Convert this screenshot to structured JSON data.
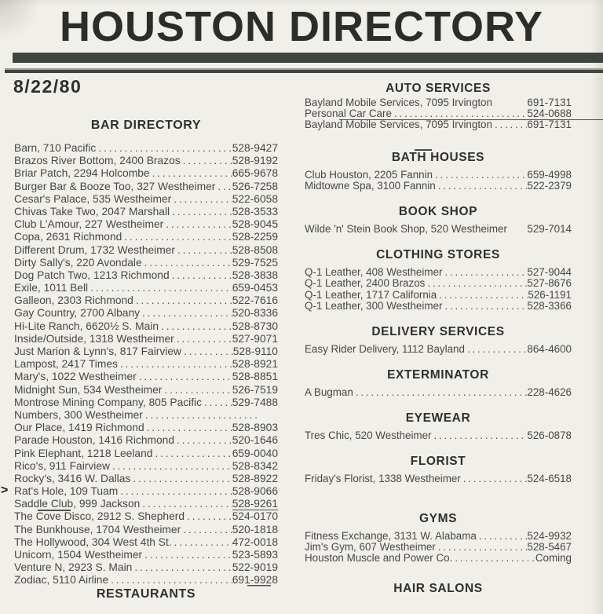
{
  "page": {
    "title": "HOUSTON DIRECTORY",
    "date": "8/22/80"
  },
  "colors": {
    "paper": "#f1efe9",
    "ink": "#474745",
    "heading_ink": "#2c2c2a",
    "header_bar": "#40453f"
  },
  "left_column": {
    "heading": "BAR DIRECTORY",
    "entries": [
      {
        "name": "Barn, 710 Pacific",
        "phone": "528-9427"
      },
      {
        "name": "Brazos River Bottom, 2400 Brazos",
        "phone": "528-9192"
      },
      {
        "name": "Briar Patch, 2294 Holcombe",
        "phone": "665-9678"
      },
      {
        "name": "Burger Bar & Booze Too, 327 Westheimer",
        "phone": "526-7258"
      },
      {
        "name": "Cesar's Palace, 535 Westheimer",
        "phone": "522-6058"
      },
      {
        "name": "Chivas Take Two, 2047 Marshall",
        "phone": "528-3533"
      },
      {
        "name": "Club L'Amour, 227 Westheimer",
        "phone": "528-9045"
      },
      {
        "name": "Copa, 2631 Richmond",
        "phone": "528-2259"
      },
      {
        "name": "Different Drum, 1732 Westheimer",
        "phone": "528-8508"
      },
      {
        "name": "Dirty Sally's, 220 Avondale",
        "phone": "529-7525"
      },
      {
        "name": "Dog Patch Two, 1213 Richmond",
        "phone": "528-3838"
      },
      {
        "name": "Exile, 1011 Bell",
        "phone": "659-0453"
      },
      {
        "name": "Galleon, 2303 Richmond",
        "phone": "522-7616"
      },
      {
        "name": "Gay Country, 2700 Albany",
        "phone": "520-8336"
      },
      {
        "name": "Hi-Lite Ranch, 6620½ S. Main",
        "phone": "528-8730"
      },
      {
        "name": "Inside/Outside, 1318 Westheimer",
        "phone": "527-9071"
      },
      {
        "name": "Just Marion & Lynn's, 817 Fairview",
        "phone": "528-9110"
      },
      {
        "name": "Lampost, 2417 Times",
        "phone": "528-8921"
      },
      {
        "name": "Mary's, 1022 Westheimer",
        "phone": "528-8851"
      },
      {
        "name": "Midnight Sun, 534 Westheimer",
        "phone": "526-7519"
      },
      {
        "name": "Montrose Mining Company, 805 Pacific",
        "phone": "529-7488"
      },
      {
        "name": "Numbers, 300 Westheimer",
        "phone": ""
      },
      {
        "name": "Our Place, 1419 Richmond",
        "phone": "528-8903"
      },
      {
        "name": "Parade Houston, 1416 Richmond",
        "phone": "520-1646"
      },
      {
        "name": "Pink Elephant, 1218 Leeland",
        "phone": "659-0040"
      },
      {
        "name": "Rico's, 911 Fairview",
        "phone": "528-8342"
      },
      {
        "name": "Rocky's, 3416 W. Dallas",
        "phone": "528-8922"
      },
      {
        "name": "Rat's Hole, 109 Tuam",
        "phone": "528-9066",
        "marker": ">"
      },
      {
        "name": "Saddle Club, 999 Jackson",
        "phone": "528-9261",
        "underline": "phone"
      },
      {
        "name": "The Cove Disco, 2912 S. Shepherd",
        "phone": "524-0170",
        "overline": true
      },
      {
        "name": "The Bunkhouse, 1704 Westheimer",
        "phone": "520-1818"
      },
      {
        "name": "The Hollywood, 304 West 4th St.",
        "phone": "472-0018"
      },
      {
        "name": "Unicorn, 1504 Westheimer",
        "phone": "523-5893"
      },
      {
        "name": "Venture N, 2923 S. Main",
        "phone": "522-9019"
      },
      {
        "name": "Zodiac, 5110 Airline",
        "phone": "691-9928",
        "underline": "phone-partial"
      }
    ],
    "footer_heading": "RESTAURANTS"
  },
  "right_column": {
    "sections": [
      {
        "heading": "AUTO SERVICES",
        "entries": [
          {
            "name": "Bayland Mobile Services, 7095 Irvington",
            "phone": "691-7131",
            "no_dots": true
          },
          {
            "name": "Personal Car Care",
            "phone": "524-0688",
            "underline": "row"
          },
          {
            "name": "Bayland Mobile Services, 7095 Irvington",
            "phone": "691-7131"
          }
        ]
      },
      {
        "heading": "BATH HOUSES",
        "entries": [
          {
            "name": "Club Houston, 2205 Fannin",
            "phone": "659-4998"
          },
          {
            "name": "Midtowne Spa, 3100 Fannin",
            "phone": "522-2379"
          }
        ]
      },
      {
        "heading": "BOOK SHOP",
        "entries": [
          {
            "name": "Wilde 'n' Stein Book Shop, 520 Westheimer",
            "phone": "529-7014",
            "no_dots": true
          }
        ]
      },
      {
        "heading": "CLOTHING STORES",
        "entries": [
          {
            "name": "Q-1 Leather, 408 Westheimer",
            "phone": "527-9044"
          },
          {
            "name": "Q-1 Leather, 2400 Brazos",
            "phone": "527-8676"
          },
          {
            "name": "Q-1 Leather, 1717 California",
            "phone": "526-1191"
          },
          {
            "name": "Q-1 Leather, 300 Westheimer",
            "phone": "528-3366"
          }
        ]
      },
      {
        "heading": "DELIVERY SERVICES",
        "entries": [
          {
            "name": "Easy Rider Delivery, 1112 Bayland",
            "phone": "864-4600"
          }
        ]
      },
      {
        "heading": "EXTERMINATOR",
        "entries": [
          {
            "name": "A Bugman",
            "phone": "228-4626"
          }
        ]
      },
      {
        "heading": "EYEWEAR",
        "entries": [
          {
            "name": "Tres Chic, 520 Westheimer",
            "phone": "526-0878"
          }
        ]
      },
      {
        "heading": "FLORIST",
        "entries": [
          {
            "name": "Friday's Florist, 1338 Westheimer",
            "phone": "524-6518"
          }
        ]
      },
      {
        "heading": "GYMS",
        "entries": [
          {
            "name": "Fitness Exchange, 3131 W. Alabama",
            "phone": "524-9932"
          },
          {
            "name": "Jim's Gym, 607 Westheimer",
            "phone": "528-5467"
          },
          {
            "name": "Houston Muscle and Power Co.",
            "phone": "Coming"
          }
        ]
      },
      {
        "heading": "HAIR SALONS",
        "entries": []
      }
    ]
  }
}
